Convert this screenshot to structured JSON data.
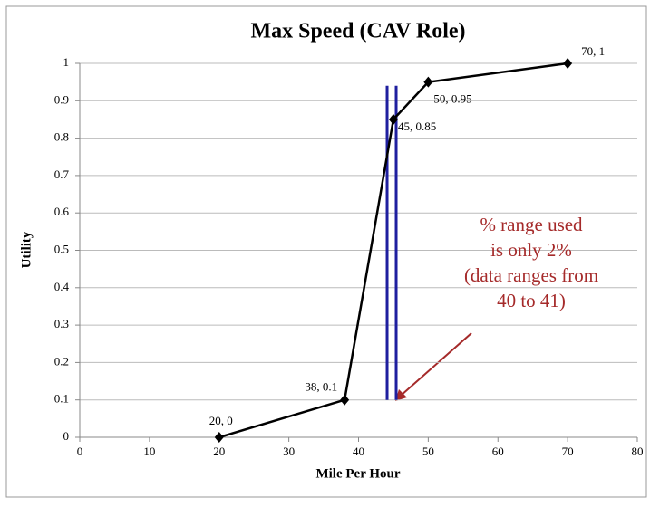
{
  "chart_data": {
    "type": "line",
    "title": "Max Speed (CAV Role)",
    "x_label": "Mile Per Hour",
    "y_label": "Utility",
    "series": [
      {
        "name": "Max Speed",
        "color": "#000000",
        "x": [
          20,
          38,
          45,
          50,
          70
        ],
        "values": [
          0,
          0.1,
          0.85,
          0.95,
          1
        ],
        "value_labels": [
          "20, 0",
          "38, 0.1",
          "45, 0.85",
          "50, 0.95",
          "70, 1"
        ]
      }
    ],
    "reference_lines": [
      {
        "x": 44.1,
        "y": [
          0.1,
          0.94
        ],
        "color": "#1f1f9f"
      },
      {
        "x": 45.4,
        "y": [
          0.1,
          0.94
        ],
        "color": "#1f1f9f"
      }
    ],
    "annotation": {
      "lines": [
        "% range used",
        "is only 2%",
        "(data ranges from",
        "40 to 41)"
      ],
      "color": "#a52a2a"
    },
    "xlim": [
      0,
      80
    ],
    "xticks": [
      0,
      10,
      20,
      30,
      40,
      50,
      60,
      70,
      80
    ],
    "ylim": [
      0,
      1
    ],
    "yticks": [
      0,
      0.1,
      0.2,
      0.3,
      0.4,
      0.5,
      0.6,
      0.7,
      0.8,
      0.9,
      1
    ],
    "grid": true
  }
}
